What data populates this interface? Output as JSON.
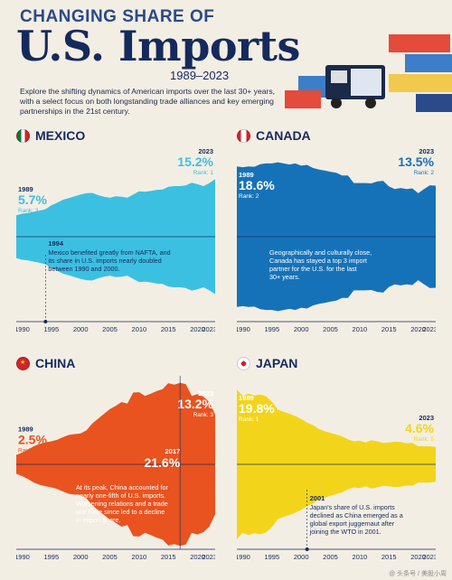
{
  "header": {
    "kicker": "CHANGING SHARE OF",
    "title": "U.S. Imports",
    "years": "1989–2023",
    "intro": "Explore the shifting dynamics of American imports over the last 30+ years, with a select focus on both longstanding trade alliances and key emerging partnerships in the 21st century."
  },
  "colors": {
    "mexico": "#3cc0e2",
    "canada": "#1672b8",
    "china": "#e8531f",
    "japan": "#f2d51a",
    "navy": "#152a5c"
  },
  "panels": [
    {
      "country": "MEXICO",
      "start_year": "1989",
      "start_value": "5.7%",
      "start_rank": "Rank: 3",
      "end_year": "2023",
      "end_value": "15.2%",
      "end_rank": "Rank: 1",
      "note_year": "1994",
      "note_text": "Mexico benefited greatly from NAFTA, and its share in U.S. imports nearly doubled between 1990 and 2000."
    },
    {
      "country": "CANADA",
      "start_year": "1989",
      "start_value": "18.6%",
      "start_rank": "Rank: 2",
      "end_year": "2023",
      "end_value": "13.5%",
      "end_rank": "Rank: 2",
      "note_year": "",
      "note_text": "Geographically and culturally close, Canada has stayed a top 3 import partner for the U.S. for the last 30+ years."
    },
    {
      "country": "CHINA",
      "start_year": "1989",
      "start_value": "2.5%",
      "start_rank": "Rank: 10",
      "end_year": "2023",
      "end_value": "13.2%",
      "end_rank": "Rank: 3",
      "peak_year": "2017",
      "peak_value": "21.6%",
      "note_year": "",
      "note_text": "At its peak, China accounted for nearly one-fifth of U.S. imports. Worsening relations and a trade war have since led to a decline in import share."
    },
    {
      "country": "JAPAN",
      "start_year": "1989",
      "start_value": "19.8%",
      "start_rank": "Rank: 1",
      "end_year": "2023",
      "end_value": "4.6%",
      "end_rank": "Rank: 5",
      "note_year": "2001",
      "note_text": "Japan's share of U.S. imports declined as China emerged as a global export juggernaut after joining the WTO in 2001."
    }
  ],
  "axis_ticks": [
    "1990",
    "1995",
    "2000",
    "2005",
    "2010",
    "2015",
    "2020",
    "2023"
  ],
  "footer": "@ 头条号 / 美股小周",
  "chart_data": [
    {
      "type": "area",
      "title": "MEXICO",
      "x": [
        1989,
        1990,
        1991,
        1992,
        1993,
        1994,
        1995,
        1996,
        1997,
        1998,
        1999,
        2000,
        2001,
        2002,
        2003,
        2004,
        2005,
        2006,
        2007,
        2008,
        2009,
        2010,
        2011,
        2012,
        2013,
        2014,
        2015,
        2016,
        2017,
        2018,
        2019,
        2020,
        2021,
        2022,
        2023
      ],
      "values": [
        5.7,
        6.1,
        6.3,
        6.6,
        6.9,
        7.3,
        8.3,
        9.0,
        9.8,
        10.2,
        10.7,
        11.2,
        11.5,
        11.6,
        11.0,
        10.6,
        10.3,
        10.7,
        10.6,
        10.3,
        11.2,
        12.0,
        11.9,
        12.1,
        12.4,
        12.5,
        13.2,
        13.4,
        13.4,
        13.6,
        14.3,
        13.9,
        13.4,
        14.2,
        15.2
      ],
      "ylim": [
        0,
        22
      ]
    },
    {
      "type": "area",
      "title": "CANADA",
      "x": [
        1989,
        1990,
        1991,
        1992,
        1993,
        1994,
        1995,
        1996,
        1997,
        1998,
        1999,
        2000,
        2001,
        2002,
        2003,
        2004,
        2005,
        2006,
        2007,
        2008,
        2009,
        2010,
        2011,
        2012,
        2013,
        2014,
        2015,
        2016,
        2017,
        2018,
        2019,
        2020,
        2021,
        2022,
        2023
      ],
      "values": [
        18.6,
        18.4,
        18.6,
        18.5,
        19.2,
        19.4,
        19.4,
        19.7,
        19.4,
        19.1,
        19.4,
        18.8,
        19.0,
        18.2,
        17.8,
        17.5,
        17.2,
        16.9,
        16.2,
        16.2,
        14.2,
        14.2,
        14.2,
        14.1,
        14.6,
        14.8,
        13.3,
        12.6,
        12.9,
        12.6,
        12.8,
        11.5,
        12.6,
        13.6,
        13.5
      ],
      "ylim": [
        0,
        22
      ]
    },
    {
      "type": "area",
      "title": "CHINA",
      "x": [
        1989,
        1990,
        1991,
        1992,
        1993,
        1994,
        1995,
        1996,
        1997,
        1998,
        1999,
        2000,
        2001,
        2002,
        2003,
        2004,
        2005,
        2006,
        2007,
        2008,
        2009,
        2010,
        2011,
        2012,
        2013,
        2014,
        2015,
        2016,
        2017,
        2018,
        2019,
        2020,
        2021,
        2022,
        2023
      ],
      "values": [
        2.5,
        3.1,
        3.9,
        4.8,
        5.4,
        5.8,
        6.1,
        6.5,
        7.2,
        7.8,
        8.0,
        8.2,
        9.0,
        10.8,
        12.1,
        13.4,
        14.6,
        15.5,
        16.5,
        16.1,
        19.0,
        19.1,
        18.1,
        18.7,
        19.4,
        19.9,
        21.5,
        21.1,
        21.6,
        21.2,
        18.1,
        18.6,
        17.9,
        16.5,
        13.2
      ],
      "ylim": [
        0,
        22
      ]
    },
    {
      "type": "area",
      "title": "JAPAN",
      "x": [
        1989,
        1990,
        1991,
        1992,
        1993,
        1994,
        1995,
        1996,
        1997,
        1998,
        1999,
        2000,
        2001,
        2002,
        2003,
        2004,
        2005,
        2006,
        2007,
        2008,
        2009,
        2010,
        2011,
        2012,
        2013,
        2014,
        2015,
        2016,
        2017,
        2018,
        2019,
        2020,
        2021,
        2022,
        2023
      ],
      "values": [
        19.8,
        18.1,
        18.7,
        18.2,
        18.5,
        18.0,
        16.6,
        14.5,
        13.9,
        13.4,
        12.8,
        12.0,
        11.1,
        10.4,
        9.4,
        8.8,
        8.3,
        7.9,
        7.4,
        6.6,
        6.1,
        6.3,
        5.8,
        6.4,
        6.1,
        5.7,
        5.8,
        6.0,
        5.9,
        5.6,
        5.7,
        4.8,
        4.8,
        4.8,
        4.6
      ],
      "ylim": [
        0,
        22
      ]
    }
  ]
}
